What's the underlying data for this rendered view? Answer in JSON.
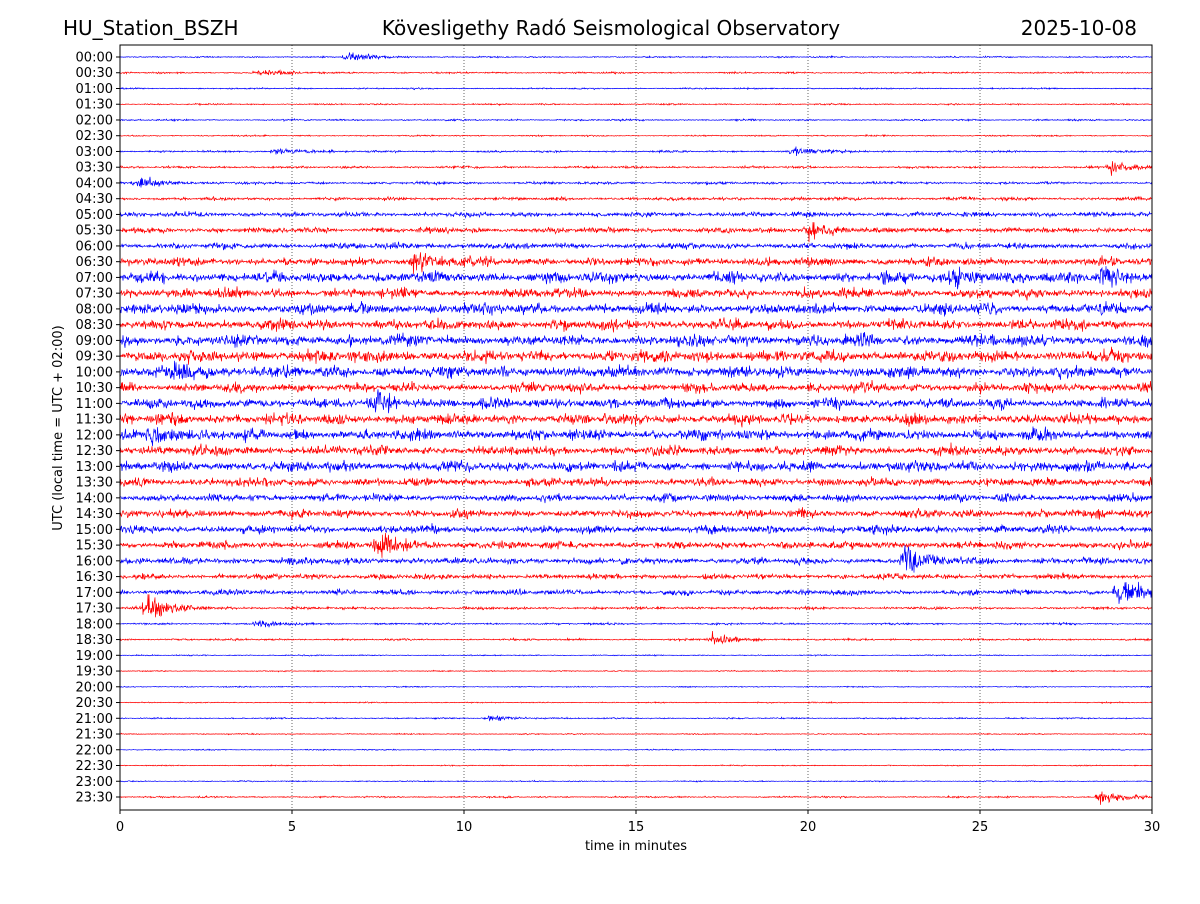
{
  "chart_data": {
    "type": "line",
    "title_left": "HU_Station_BSZH",
    "title": "Kövesligethy Radó Seismological Observatory",
    "title_right": "2025-10-08",
    "xlabel": "time in minutes",
    "ylabel": "UTC (local time = UTC + 02:00)",
    "xlim": [
      0,
      30
    ],
    "xticks": [
      "0",
      "5",
      "10",
      "15",
      "20",
      "25",
      "30"
    ],
    "grid": "vertical dotted at x ticks",
    "colors": [
      "#0000ff",
      "#ff0000"
    ],
    "rows": [
      "00:00",
      "00:30",
      "01:00",
      "01:30",
      "02:00",
      "02:30",
      "03:00",
      "03:30",
      "04:00",
      "04:30",
      "05:00",
      "05:30",
      "06:00",
      "06:30",
      "07:00",
      "07:30",
      "08:00",
      "08:30",
      "09:00",
      "09:30",
      "10:00",
      "10:30",
      "11:00",
      "11:30",
      "12:00",
      "12:30",
      "13:00",
      "13:30",
      "14:00",
      "14:30",
      "15:00",
      "15:30",
      "16:00",
      "16:30",
      "17:00",
      "17:30",
      "18:00",
      "18:30",
      "19:00",
      "19:30",
      "20:00",
      "20:30",
      "21:00",
      "21:30",
      "22:00",
      "22:30",
      "23:00",
      "23:30"
    ],
    "noise_level": [
      0.05,
      0.06,
      0.05,
      0.05,
      0.06,
      0.05,
      0.07,
      0.08,
      0.1,
      0.12,
      0.18,
      0.2,
      0.22,
      0.3,
      0.4,
      0.35,
      0.4,
      0.38,
      0.42,
      0.45,
      0.42,
      0.35,
      0.38,
      0.4,
      0.4,
      0.35,
      0.38,
      0.32,
      0.28,
      0.3,
      0.3,
      0.28,
      0.25,
      0.2,
      0.2,
      0.1,
      0.07,
      0.07,
      0.04,
      0.04,
      0.04,
      0.04,
      0.05,
      0.04,
      0.04,
      0.04,
      0.04,
      0.06
    ],
    "events": [
      {
        "row": "00:00",
        "minute": 6.6,
        "amp": 0.5
      },
      {
        "row": "00:30",
        "minute": 4.0,
        "amp": 0.35
      },
      {
        "row": "03:00",
        "minute": 4.5,
        "amp": 0.35
      },
      {
        "row": "03:00",
        "minute": 19.6,
        "amp": 0.45
      },
      {
        "row": "03:30",
        "minute": 28.8,
        "amp": 0.6
      },
      {
        "row": "04:00",
        "minute": 0.5,
        "amp": 0.5
      },
      {
        "row": "05:30",
        "minute": 20.0,
        "amp": 0.8
      },
      {
        "row": "06:30",
        "minute": 8.5,
        "amp": 1.0
      },
      {
        "row": "07:00",
        "minute": 28.5,
        "amp": 1.0
      },
      {
        "row": "07:00",
        "minute": 24.2,
        "amp": 0.8
      },
      {
        "row": "10:00",
        "minute": 1.6,
        "amp": 0.9
      },
      {
        "row": "11:00",
        "minute": 7.4,
        "amp": 0.9
      },
      {
        "row": "12:00",
        "minute": 0.8,
        "amp": 0.9
      },
      {
        "row": "15:30",
        "minute": 7.5,
        "amp": 0.8
      },
      {
        "row": "16:00",
        "minute": 22.8,
        "amp": 1.3
      },
      {
        "row": "17:00",
        "minute": 29.0,
        "amp": 1.1
      },
      {
        "row": "17:30",
        "minute": 0.8,
        "amp": 1.2
      },
      {
        "row": "18:00",
        "minute": 4.0,
        "amp": 0.35
      },
      {
        "row": "18:30",
        "minute": 17.2,
        "amp": 0.5
      },
      {
        "row": "21:00",
        "minute": 10.7,
        "amp": 0.35
      },
      {
        "row": "23:30",
        "minute": 28.5,
        "amp": 0.7
      }
    ]
  }
}
